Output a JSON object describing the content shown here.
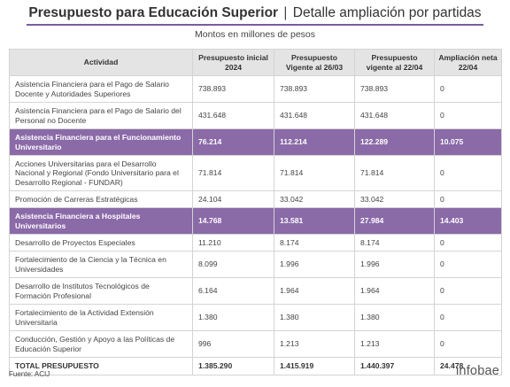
{
  "chart_data": {
    "type": "table",
    "title": "Presupuesto para Educación Superior",
    "title_sep": "|",
    "title_rest": "Detalle ampliación por partidas",
    "subtitle": "Montos en millones de pesos",
    "columns": [
      "Actividad",
      "Presupuesto inicial 2024",
      "Presupuesto Vigente al 26/03",
      "Presupuesto vigente al 22/04",
      "Ampliación neta 22/04"
    ],
    "rows": [
      {
        "cells": [
          "Asistencia Financiera para el Pago de Salario Docente y Autoridades Superiores",
          "738.893",
          "738.893",
          "738.893",
          "0"
        ],
        "highlight": false
      },
      {
        "cells": [
          "Asistencia Financiera para el Pago de Salario del Personal no Docente",
          "431.648",
          "431.648",
          "431.648",
          "0"
        ],
        "highlight": false
      },
      {
        "cells": [
          "Asistencia Financiera para el Funcionamiento Universitario",
          "76.214",
          "112.214",
          "122.289",
          "10.075"
        ],
        "highlight": true
      },
      {
        "cells": [
          "Acciones Universitarias para el Desarrollo Nacional y Regional (Fondo Universitario para el Desarrollo Regional - FUNDAR)",
          "71.814",
          "71.814",
          "71.814",
          "0"
        ],
        "highlight": false
      },
      {
        "cells": [
          "Promoción de Carreras Estratégicas",
          "24.104",
          "33.042",
          "33.042",
          "0"
        ],
        "highlight": false
      },
      {
        "cells": [
          "Asistencia Financiera a Hospitales Universitarios",
          "14.768",
          "13.581",
          "27.984",
          "14.403"
        ],
        "highlight": true
      },
      {
        "cells": [
          "Desarrollo de Proyectos Especiales",
          "11.210",
          "8.174",
          "8.174",
          "0"
        ],
        "highlight": false
      },
      {
        "cells": [
          "Fortalecimiento de la Ciencia y la Técnica en Universidades",
          "8.099",
          "1.996",
          "1.996",
          "0"
        ],
        "highlight": false
      },
      {
        "cells": [
          "Desarrollo de Institutos Tecnológicos de Formación Profesional",
          "6.164",
          "1.964",
          "1.964",
          "0"
        ],
        "highlight": false
      },
      {
        "cells": [
          "Fortalecimiento de la Actividad Extensión Universitaria",
          "1.380",
          "1.380",
          "1.380",
          "0"
        ],
        "highlight": false
      },
      {
        "cells": [
          "Conducción, Gestión y Apoyo a las Políticas de Educación Superior",
          "996",
          "1.213",
          "1.213",
          "0"
        ],
        "highlight": false
      }
    ],
    "total": [
      "TOTAL PRESUPUESTO",
      "1.385.290",
      "1.415.919",
      "1.440.397",
      "24.478"
    ],
    "highlight_color": "#8b6aa8"
  },
  "footer": {
    "source": "Fuente: ACIJ",
    "logo": "infobae"
  }
}
